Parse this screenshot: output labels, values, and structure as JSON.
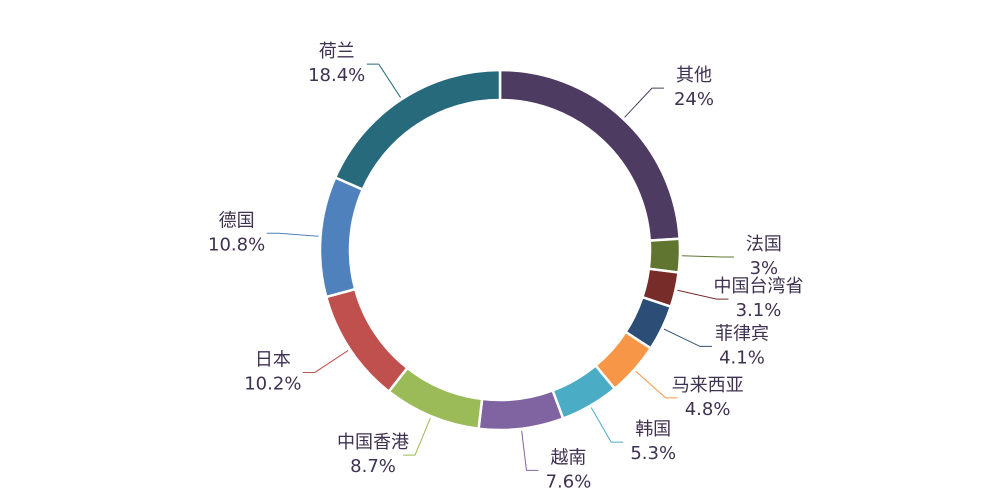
{
  "chart_data": {
    "type": "donut",
    "categories": [
      "其他",
      "法国",
      "中国台湾省",
      "菲律宾",
      "马来西亚",
      "韩国",
      "越南",
      "中国香港",
      "日本",
      "德国",
      "荷兰"
    ],
    "values": [
      24,
      3,
      3.1,
      4.1,
      4.8,
      5.3,
      7.6,
      8.7,
      10.2,
      10.8,
      18.4
    ],
    "value_labels": [
      "24%",
      "3%",
      "3.1%",
      "4.1%",
      "4.8%",
      "5.3%",
      "7.6%",
      "8.7%",
      "10.2%",
      "10.8%",
      "18.4%"
    ],
    "colors": [
      "#4e3b62",
      "#5f7530",
      "#772c2a",
      "#2c4d75",
      "#f79646",
      "#4bacc6",
      "#8064a2",
      "#9bbb59",
      "#c0504d",
      "#4f81bd",
      "#276a7c"
    ]
  }
}
